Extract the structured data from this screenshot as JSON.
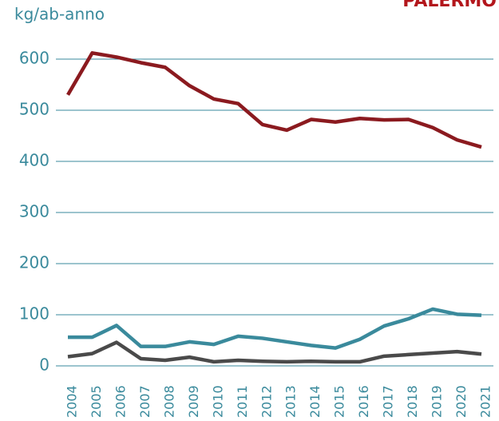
{
  "chart_data": {
    "type": "line",
    "title": "PALERMO",
    "y_label": "kg/ab-anno",
    "categories": [
      "2004",
      "2005",
      "2006",
      "2007",
      "2008",
      "2009",
      "2010",
      "2011",
      "2012",
      "2013",
      "2014",
      "2015",
      "2016",
      "2017",
      "2018",
      "2019",
      "2020",
      "2021"
    ],
    "series": [
      {
        "color": "#8b1a1f",
        "values": [
          530,
          612,
          604,
          593,
          584,
          548,
          522,
          513,
          472,
          461,
          482,
          477,
          484,
          481,
          482,
          466,
          442,
          428
        ]
      },
      {
        "color": "#3a8a9c",
        "values": [
          56,
          56,
          79,
          38,
          38,
          47,
          42,
          58,
          54,
          47,
          40,
          35,
          52,
          78,
          92,
          111,
          101,
          99
        ]
      },
      {
        "color": "#4a4a4a",
        "values": [
          18,
          24,
          46,
          14,
          11,
          17,
          8,
          11,
          9,
          8,
          9,
          8,
          8,
          19,
          22,
          25,
          28,
          23
        ]
      }
    ],
    "ylim": [
      0,
      620
    ],
    "yticks": [
      0,
      100,
      200,
      300,
      400,
      500,
      600
    ],
    "grid": true,
    "grid_color": "#3a8a9c",
    "text_color": "#3a8a9c",
    "title_color": "#b3161c"
  }
}
